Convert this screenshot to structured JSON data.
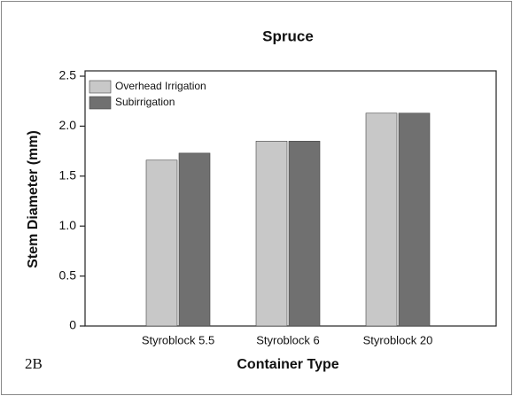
{
  "chart_data": {
    "type": "bar",
    "title": "Spruce",
    "y_label": "Stem Diameter (mm)",
    "x_label": "Container Type",
    "annotations": [
      "2B"
    ],
    "categories": [
      "Styroblock 5.5",
      "Styroblock 6",
      "Styroblock 20"
    ],
    "series": [
      {
        "name": "Overhead Irrigation",
        "color": "#c8c8c8",
        "values": [
          1.66,
          1.85,
          2.13
        ]
      },
      {
        "name": "Subirrigation",
        "color": "#707070",
        "values": [
          1.73,
          1.85,
          2.13
        ]
      }
    ],
    "ylim": [
      0,
      2.5
    ],
    "yticks": [
      0,
      0.5,
      {
        "value": 1,
        "label": "1.0"
      },
      1.5,
      {
        "value": 2,
        "label": "2.0"
      },
      2.5
    ],
    "legend": "upper left",
    "grid": false
  }
}
